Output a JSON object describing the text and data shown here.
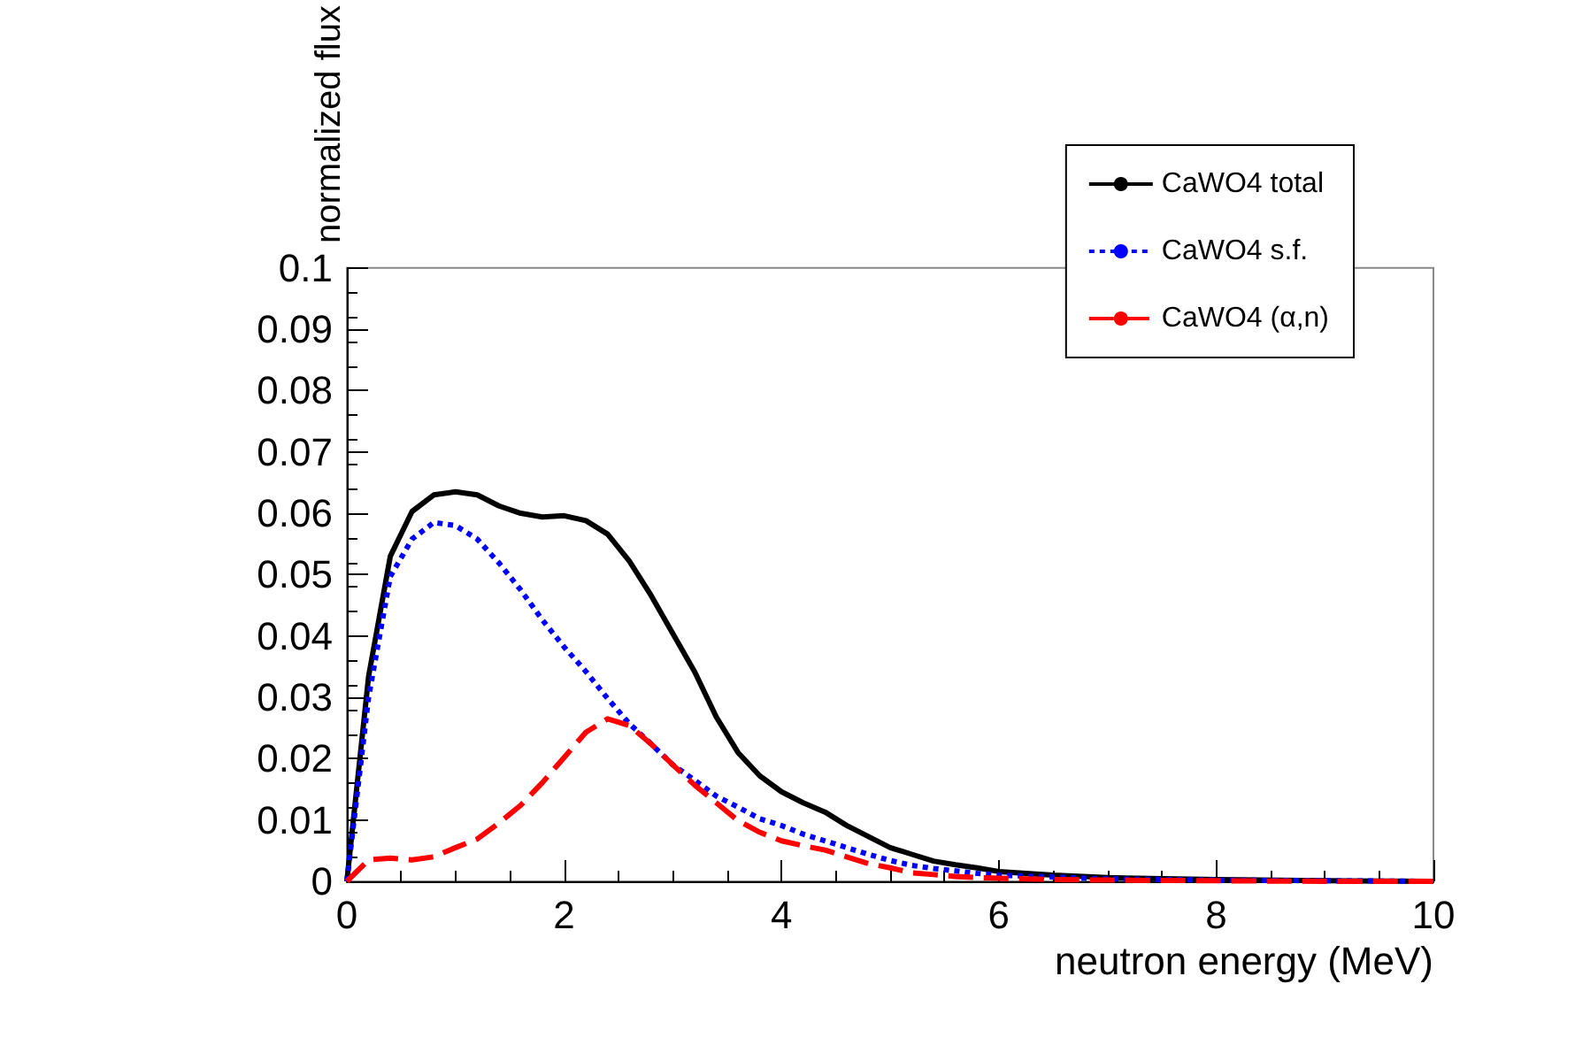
{
  "chart_data": {
    "type": "line",
    "xlabel": "neutron energy (MeV)",
    "ylabel": "normalized flux",
    "x": [
      0,
      0.2,
      0.4,
      0.6,
      0.8,
      1.0,
      1.2,
      1.4,
      1.6,
      1.8,
      2.0,
      2.2,
      2.4,
      2.6,
      2.8,
      3.0,
      3.2,
      3.4,
      3.6,
      3.8,
      4.0,
      4.2,
      4.4,
      4.6,
      4.8,
      5.0,
      5.2,
      5.4,
      5.6,
      5.8,
      6.0,
      6.5,
      7,
      8,
      9,
      10
    ],
    "series": [
      {
        "name": "CaWO4 total",
        "color": "#000000",
        "line_style": "solid",
        "values": [
          0,
          0.0334,
          0.053,
          0.0603,
          0.063,
          0.0635,
          0.063,
          0.0612,
          0.06,
          0.0594,
          0.0596,
          0.0588,
          0.0566,
          0.0522,
          0.0466,
          0.0404,
          0.0342,
          0.0268,
          0.021,
          0.0172,
          0.0146,
          0.0128,
          0.0113,
          0.0091,
          0.0073,
          0.0055,
          0.0044,
          0.0033,
          0.0027,
          0.0022,
          0.0016,
          0.001,
          0.0006,
          0.0003,
          0.0001,
          0
        ]
      },
      {
        "name": "CaWO4 s.f.",
        "color": "#0000ff",
        "line_style": "dotted",
        "values": [
          0,
          0.03,
          0.0497,
          0.0558,
          0.0585,
          0.058,
          0.0558,
          0.0519,
          0.0475,
          0.0426,
          0.0382,
          0.0342,
          0.0298,
          0.0257,
          0.0224,
          0.019,
          0.0165,
          0.0139,
          0.0121,
          0.0102,
          0.0091,
          0.0077,
          0.0066,
          0.0055,
          0.0044,
          0.0034,
          0.0026,
          0.0021,
          0.0017,
          0.0013,
          0.001,
          0.0007,
          0.0004,
          0.0002,
          0.0001,
          0
        ]
      },
      {
        "name": "CaWO4 (α,n)",
        "color": "#ff0000",
        "line_style": "dashed",
        "values": [
          0,
          0.0035,
          0.0038,
          0.0035,
          0.004,
          0.0055,
          0.0069,
          0.0095,
          0.0124,
          0.0161,
          0.0202,
          0.0243,
          0.0265,
          0.0254,
          0.0224,
          0.019,
          0.0157,
          0.0128,
          0.0099,
          0.008,
          0.0066,
          0.0058,
          0.0051,
          0.004,
          0.0029,
          0.0022,
          0.0014,
          0.0011,
          0.0008,
          0.0006,
          0.0005,
          0.0003,
          0.0002,
          0.0001,
          0,
          0
        ]
      }
    ],
    "xlim": [
      0,
      10
    ],
    "xticks": [
      0,
      2,
      4,
      6,
      8,
      10
    ],
    "ylim": [
      0,
      0.1
    ],
    "yticks": [
      0,
      0.01,
      0.02,
      0.03,
      0.04,
      0.05,
      0.06,
      0.07,
      0.08,
      0.09,
      0.1
    ],
    "grid": false,
    "legend": "top right",
    "marker": "none"
  }
}
